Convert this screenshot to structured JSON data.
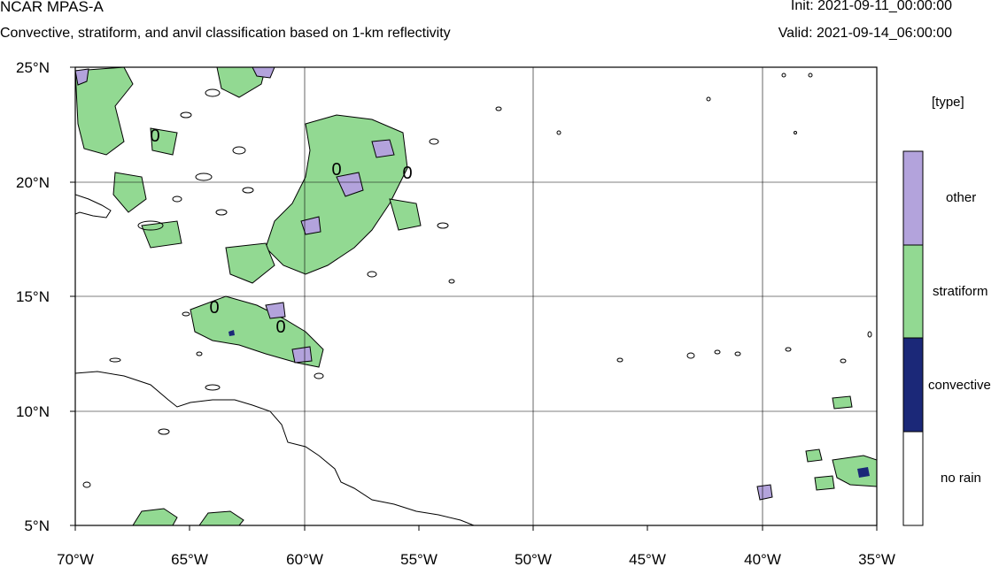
{
  "header": {
    "title": "NCAR MPAS-A",
    "subtitle": "Convective, stratiform, and anvil classification based on 1-km reflectivity",
    "init": "Init: 2021-09-11_00:00:00",
    "valid": "Valid: 2021-09-14_06:00:00"
  },
  "map": {
    "lon_labels": [
      "70°W",
      "65°W",
      "60°W",
      "55°W",
      "50°W",
      "45°W",
      "40°W",
      "35°W"
    ],
    "lat_labels": [
      "25°N",
      "20°N",
      "15°N",
      "10°N",
      "5°N"
    ],
    "lon_range": [
      -70,
      -35
    ],
    "lat_range": [
      5,
      25
    ],
    "contour_labels": [
      "0",
      "0",
      "0",
      "0",
      "0"
    ]
  },
  "legend": {
    "title": "[type]",
    "items": [
      {
        "label": "other",
        "color": "#b3a3dc"
      },
      {
        "label": "stratiform",
        "color": "#92d992"
      },
      {
        "label": "convective",
        "color": "#1b2878"
      },
      {
        "label": "no rain",
        "color": "#ffffff"
      }
    ]
  }
}
